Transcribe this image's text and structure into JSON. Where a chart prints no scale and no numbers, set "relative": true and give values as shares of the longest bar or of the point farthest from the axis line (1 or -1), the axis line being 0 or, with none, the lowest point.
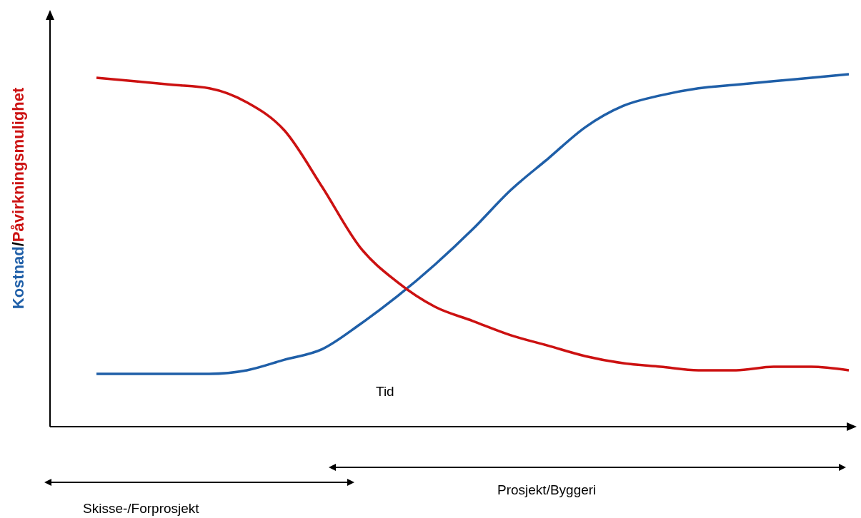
{
  "chart_data": {
    "type": "line",
    "relative": true,
    "ylabel": "Kostnad/Påvirkningsmulighet",
    "categories": [
      null,
      null,
      null,
      null,
      null,
      null,
      null,
      null,
      null,
      null,
      null,
      null,
      null,
      null,
      null,
      null,
      null,
      null,
      null,
      null,
      null
    ],
    "series": [
      {
        "color": "#1f5fa8",
        "values": [
          0.15,
          0.15,
          0.15,
          0.15,
          0.16,
          0.19,
          0.22,
          0.29,
          0.37,
          0.46,
          0.56,
          0.67,
          0.76,
          0.85,
          0.91,
          0.94,
          0.96,
          0.97,
          0.98,
          0.99,
          1
        ]
      },
      {
        "color": "#cc1111",
        "values": [
          0.99,
          0.98,
          0.97,
          0.96,
          0.92,
          0.84,
          0.68,
          0.51,
          0.41,
          0.34,
          0.3,
          0.26,
          0.23,
          0.2,
          0.18,
          0.17,
          0.16,
          0.16,
          0.17,
          0.17,
          0.16
        ]
      }
    ],
    "marker": "none",
    "annotations": [
      "Tid",
      "Prosjekt/Byggeri",
      "Skisse-/Forprosjekt"
    ]
  }
}
